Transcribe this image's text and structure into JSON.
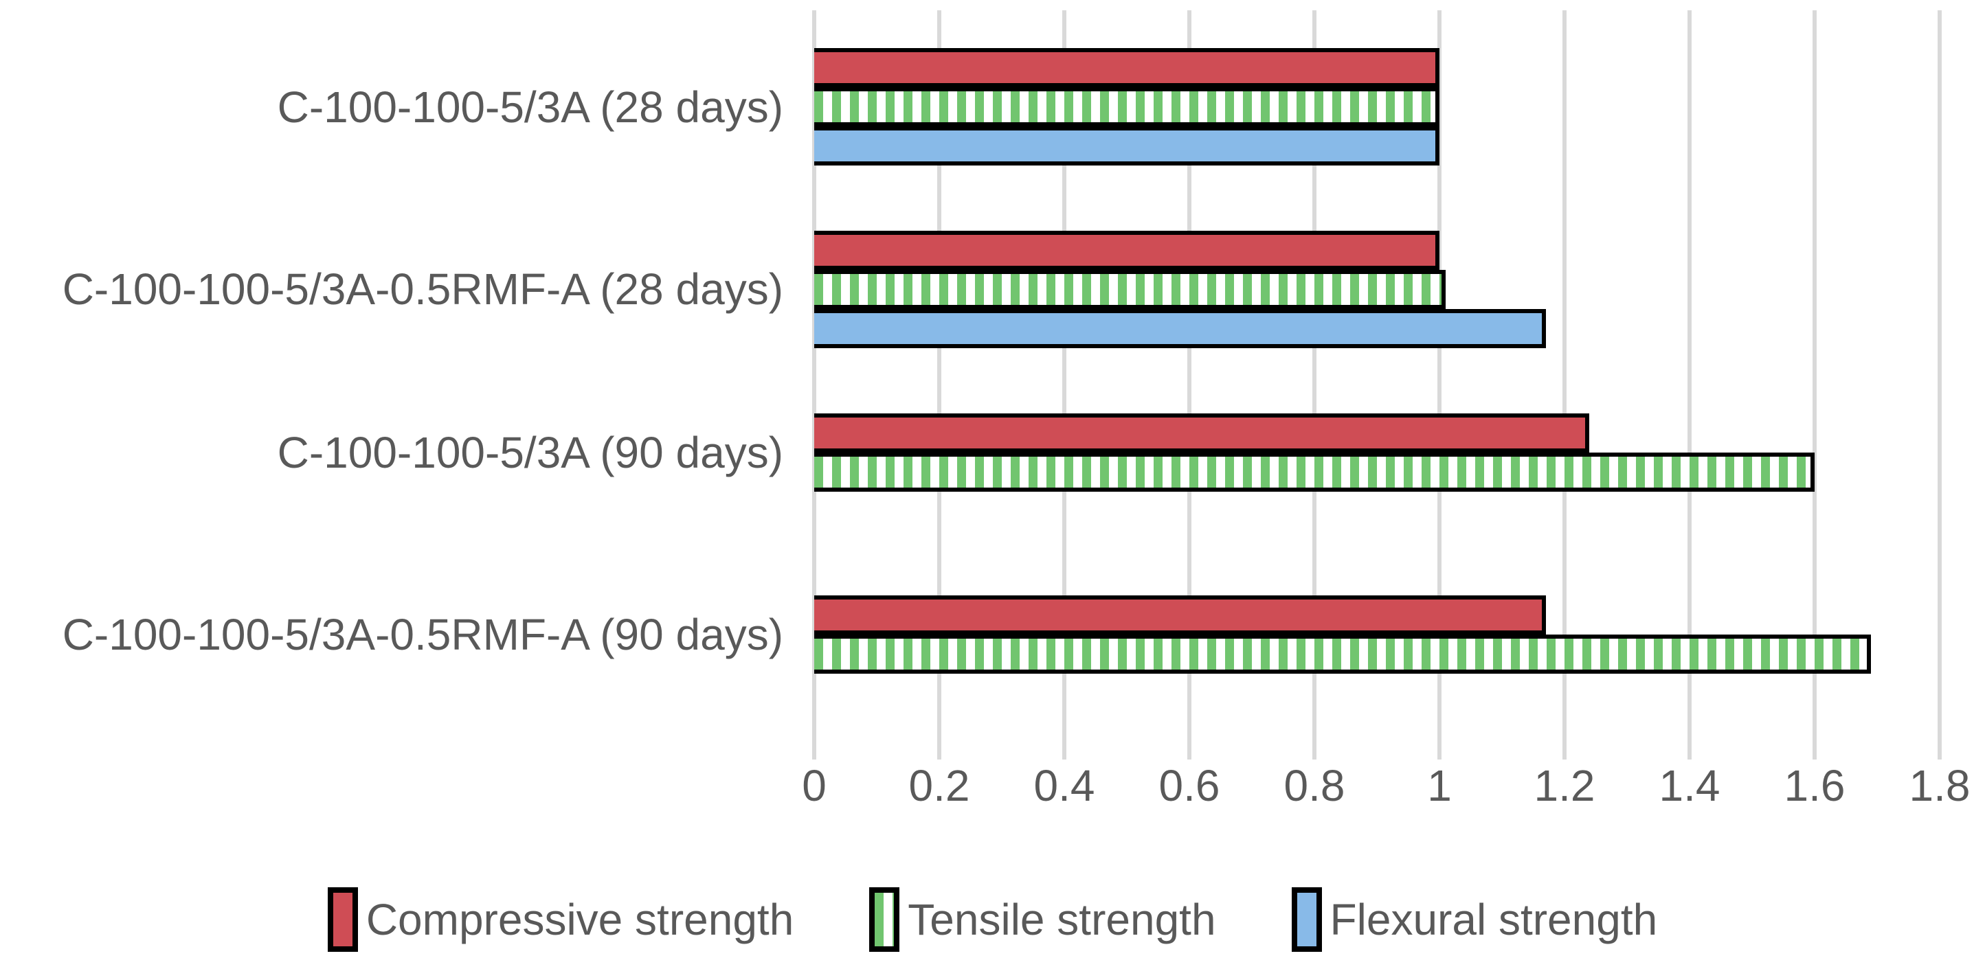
{
  "chart_data": {
    "type": "bar",
    "orientation": "horizontal",
    "title": "",
    "xlabel": "",
    "ylabel": "",
    "categories": [
      "C-100-100-5/3A (28 days)",
      "C-100-100-5/3A-0.5RMF-A (28 days)",
      "C-100-100-5/3A (90 days)",
      "C-100-100-5/3A-0.5RMF-A (90 days)"
    ],
    "series": [
      {
        "name": "Compressive strength",
        "color": "#CF4D55",
        "pattern": "solid",
        "values": [
          1.0,
          1.0,
          1.24,
          1.17
        ]
      },
      {
        "name": "Tensile strength",
        "color": "#71C56F",
        "pattern": "vertical-stripes",
        "values": [
          1.0,
          1.01,
          1.6,
          1.69
        ]
      },
      {
        "name": "Flexural strength",
        "color": "#88BAE8",
        "pattern": "solid",
        "values": [
          1.0,
          1.17,
          null,
          null
        ]
      }
    ],
    "x_ticks": [
      "0",
      "0.2",
      "0.4",
      "0.6",
      "0.8",
      "1",
      "1.2",
      "1.4",
      "1.6",
      "1.8"
    ],
    "xlim": [
      0,
      1.8
    ],
    "grid": "vertical",
    "legend_position": "bottom"
  },
  "style": {
    "background": "#FFFFFF",
    "grid_color": "#D9D9D9",
    "bar_border_color": "#000000",
    "text_color": "#595959",
    "stripe_background": "#FFFFFF"
  }
}
